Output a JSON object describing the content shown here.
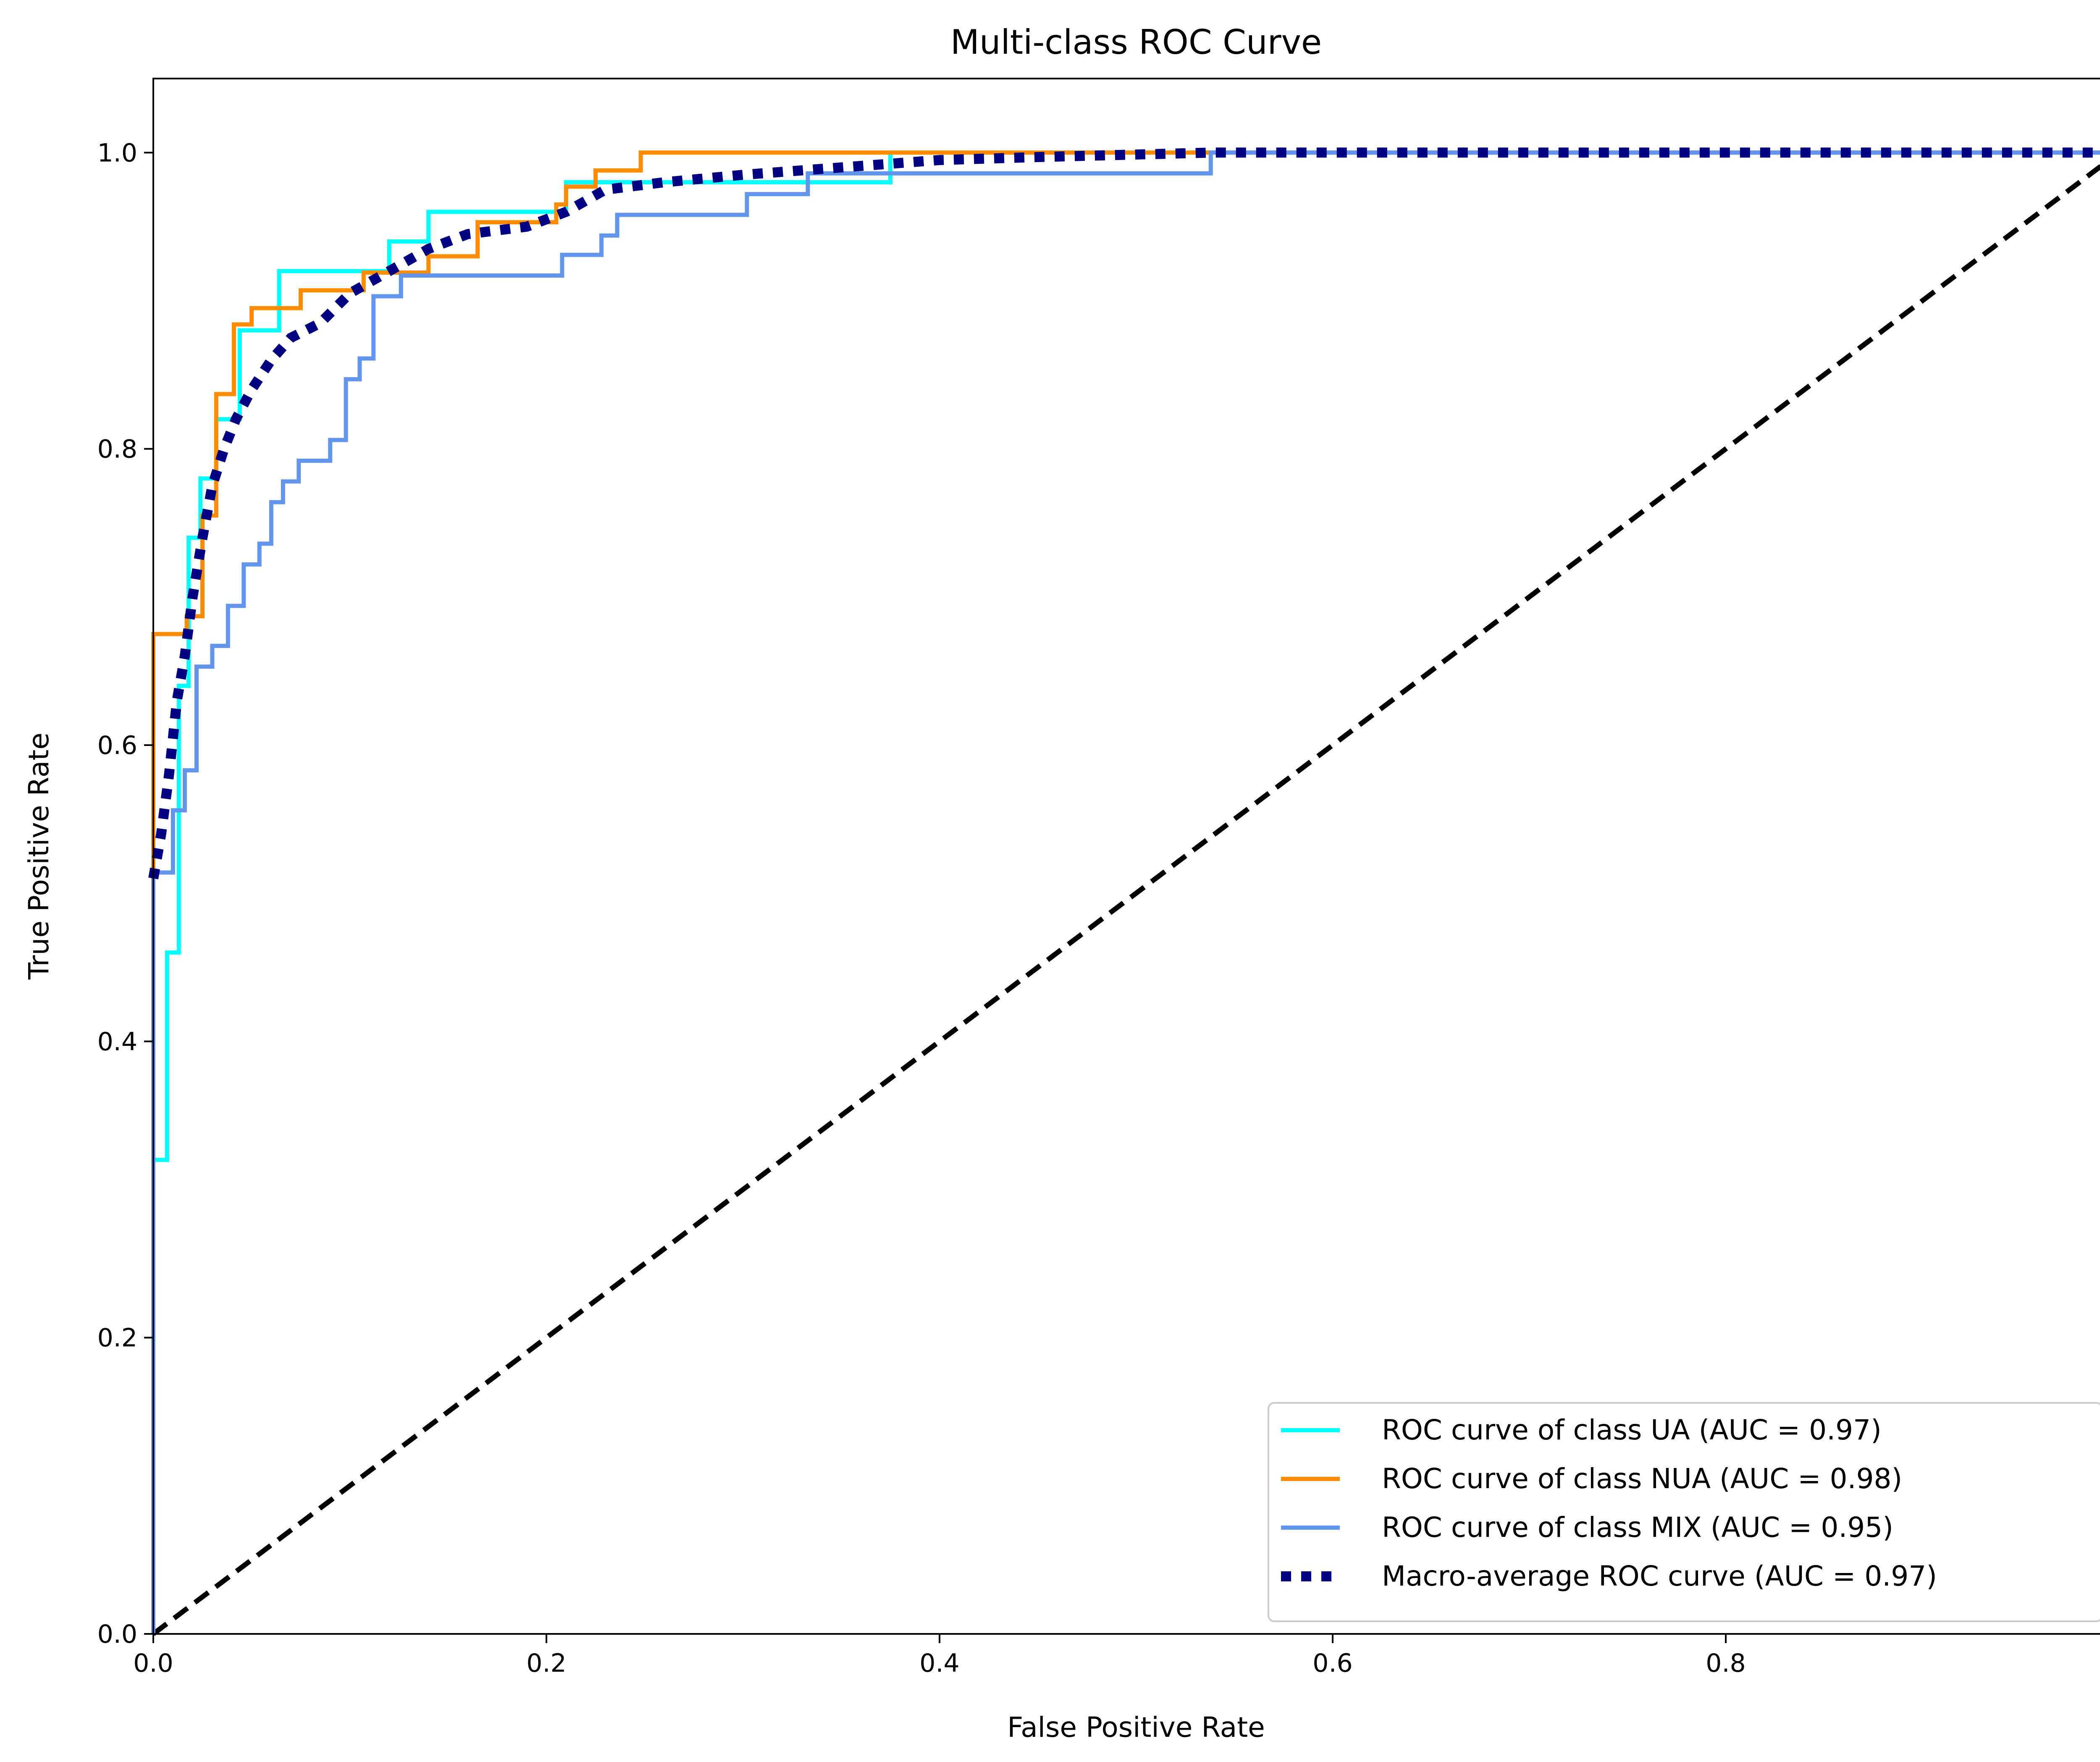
{
  "chart_data": {
    "type": "line",
    "title": "Multi-class ROC Curve",
    "xlabel": "False Positive Rate",
    "ylabel": "True Positive Rate",
    "xlim": [
      0.0,
      1.0
    ],
    "ylim": [
      0.0,
      1.05
    ],
    "x_ticks": [
      "0.0",
      "0.2",
      "0.4",
      "0.6",
      "0.8",
      "1.0"
    ],
    "y_ticks": [
      "0.0",
      "0.2",
      "0.4",
      "0.6",
      "0.8",
      "1.0"
    ],
    "grid": false,
    "legend_position": "lower-right",
    "series": [
      {
        "name": "ROC curve of class UA (AUC = 0.97)",
        "color": "#00ffff",
        "style": "solid",
        "x": [
          0.0,
          0.0,
          0.007,
          0.007,
          0.013,
          0.013,
          0.018,
          0.018,
          0.024,
          0.024,
          0.032,
          0.032,
          0.044,
          0.044,
          0.064,
          0.064,
          0.12,
          0.12,
          0.14,
          0.14,
          0.21,
          0.21,
          0.375,
          0.375,
          1.0
        ],
        "y": [
          0.0,
          0.32,
          0.32,
          0.46,
          0.46,
          0.64,
          0.64,
          0.74,
          0.74,
          0.78,
          0.78,
          0.82,
          0.82,
          0.88,
          0.88,
          0.92,
          0.92,
          0.94,
          0.94,
          0.96,
          0.96,
          0.98,
          0.98,
          1.0,
          1.0
        ]
      },
      {
        "name": "ROC curve of class NUA (AUC = 0.98)",
        "color": "#ff8c00",
        "style": "solid",
        "x": [
          0.0,
          0.0,
          0.0,
          0.017,
          0.017,
          0.025,
          0.025,
          0.032,
          0.032,
          0.041,
          0.041,
          0.05,
          0.05,
          0.075,
          0.075,
          0.107,
          0.107,
          0.14,
          0.14,
          0.165,
          0.165,
          0.205,
          0.205,
          0.21,
          0.21,
          0.225,
          0.225,
          0.248,
          0.248,
          0.54,
          0.54,
          1.0
        ],
        "y": [
          0.0,
          0.52,
          0.675,
          0.675,
          0.687,
          0.687,
          0.755,
          0.755,
          0.837,
          0.837,
          0.884,
          0.884,
          0.895,
          0.895,
          0.907,
          0.907,
          0.919,
          0.919,
          0.93,
          0.93,
          0.953,
          0.953,
          0.965,
          0.965,
          0.977,
          0.977,
          0.988,
          0.988,
          1.0,
          1.0,
          1.0,
          1.0
        ]
      },
      {
        "name": "ROC curve of class MIX (AUC = 0.95)",
        "color": "#6495ed",
        "style": "solid",
        "x": [
          0.0,
          0.0,
          0.01,
          0.01,
          0.016,
          0.016,
          0.022,
          0.022,
          0.03,
          0.03,
          0.038,
          0.038,
          0.046,
          0.046,
          0.054,
          0.054,
          0.06,
          0.06,
          0.066,
          0.066,
          0.074,
          0.074,
          0.09,
          0.09,
          0.098,
          0.098,
          0.105,
          0.105,
          0.112,
          0.112,
          0.126,
          0.126,
          0.208,
          0.208,
          0.228,
          0.228,
          0.236,
          0.236,
          0.253,
          0.253,
          0.302,
          0.302,
          0.333,
          0.333,
          0.538,
          0.538,
          1.0
        ],
        "y": [
          0.0,
          0.514,
          0.514,
          0.556,
          0.556,
          0.583,
          0.583,
          0.653,
          0.653,
          0.667,
          0.667,
          0.694,
          0.694,
          0.722,
          0.722,
          0.736,
          0.736,
          0.764,
          0.764,
          0.778,
          0.778,
          0.792,
          0.792,
          0.806,
          0.806,
          0.847,
          0.847,
          0.861,
          0.861,
          0.903,
          0.903,
          0.917,
          0.917,
          0.931,
          0.931,
          0.944,
          0.944,
          0.958,
          0.958,
          0.958,
          0.958,
          0.972,
          0.972,
          0.986,
          0.986,
          1.0,
          1.0
        ]
      },
      {
        "name": "Macro-average ROC curve (AUC = 0.97)",
        "color": "#000080",
        "style": "dotted",
        "x": [
          0.0,
          0.004,
          0.008,
          0.012,
          0.016,
          0.02,
          0.025,
          0.03,
          0.036,
          0.042,
          0.05,
          0.06,
          0.07,
          0.085,
          0.1,
          0.12,
          0.14,
          0.16,
          0.19,
          0.21,
          0.23,
          0.26,
          0.3,
          0.35,
          0.4,
          0.45,
          0.538,
          0.6,
          0.7,
          0.8,
          0.9,
          1.0
        ],
        "y": [
          0.51,
          0.54,
          0.58,
          0.63,
          0.66,
          0.7,
          0.74,
          0.775,
          0.8,
          0.82,
          0.84,
          0.86,
          0.875,
          0.885,
          0.905,
          0.92,
          0.935,
          0.945,
          0.95,
          0.96,
          0.975,
          0.98,
          0.985,
          0.99,
          0.995,
          0.997,
          1.0,
          1.0,
          1.0,
          1.0,
          1.0,
          1.0
        ]
      },
      {
        "name": "",
        "color": "#000000",
        "style": "dashed",
        "x": [
          0.0,
          1.0
        ],
        "y": [
          0.0,
          1.0
        ]
      }
    ]
  }
}
